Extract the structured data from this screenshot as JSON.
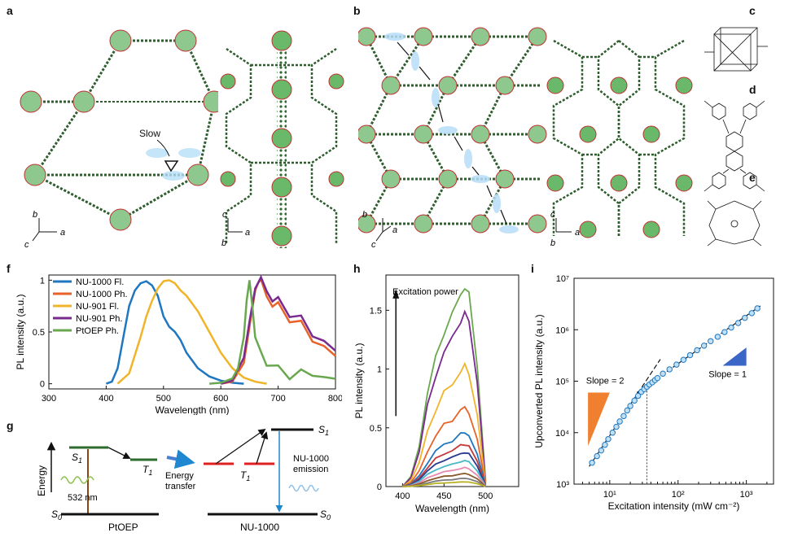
{
  "panels": {
    "a": "a",
    "b": "b",
    "c": "c",
    "d": "d",
    "e": "e",
    "f": "f",
    "g": "g",
    "h": "h",
    "i": "i"
  },
  "panel_a": {
    "slow_label": "Slow",
    "axes_left": {
      "y": "b",
      "z": "c",
      "x": "a"
    },
    "axes_right": {
      "y": "c",
      "z": "b",
      "x": "a"
    }
  },
  "panel_b": {
    "axes_left": {
      "y": "b",
      "z": "c",
      "x": "a"
    },
    "axes_right": {
      "y": "c",
      "z": "b",
      "x": "a"
    }
  },
  "panel_g": {
    "energy_label": "Energy",
    "s1_left": "S",
    "s1_left_sub": "1",
    "t1_left": "T",
    "t1_left_sub": "1",
    "wavelength": "532 nm",
    "s0_left": "S",
    "s0_left_sub": "0",
    "ptoep": "PtOEP",
    "energy_transfer": [
      "Energy",
      "transfer"
    ],
    "t1_right": "T",
    "t1_right_sub": "1",
    "s1_right": "S",
    "s1_right_sub": "1",
    "s0_right": "S",
    "s0_right_sub": "0",
    "emission": [
      "NU-1000",
      "emission"
    ],
    "nu1000": "NU-1000"
  },
  "chart_data": [
    {
      "id": "f",
      "type": "line",
      "xlabel": "Wavelength (nm)",
      "ylabel": "PL intensity (a.u.)",
      "xlim": [
        300,
        800
      ],
      "ylim": [
        -0.05,
        1.05
      ],
      "xticks": [
        300,
        400,
        500,
        600,
        700,
        800
      ],
      "yticks": [
        0,
        0.5,
        1
      ],
      "yticklabels": [
        "0",
        "0.5",
        "1"
      ],
      "legend_position": "top-left",
      "series": [
        {
          "name": "NU-1000 Fl.",
          "color": "#1f77c0",
          "x": [
            400,
            410,
            420,
            430,
            440,
            450,
            460,
            470,
            480,
            490,
            500,
            510,
            520,
            530,
            540,
            560,
            580,
            600,
            620,
            640
          ],
          "y": [
            0,
            0.02,
            0.15,
            0.45,
            0.75,
            0.9,
            0.97,
            0.99,
            0.95,
            0.85,
            0.65,
            0.55,
            0.5,
            0.42,
            0.3,
            0.15,
            0.07,
            0.03,
            0.01,
            0
          ]
        },
        {
          "name": "NU-1000 Ph.",
          "color": "#e8622a",
          "x": [
            600,
            620,
            640,
            650,
            660,
            665,
            670,
            680,
            690,
            700,
            720,
            740,
            760,
            780,
            800
          ],
          "y": [
            0,
            0.02,
            0.2,
            0.55,
            0.9,
            1.0,
            0.95,
            0.85,
            0.8,
            0.75,
            0.65,
            0.55,
            0.45,
            0.35,
            0.25
          ]
        },
        {
          "name": "NU-901 Fl.",
          "color": "#f0b428",
          "x": [
            420,
            440,
            460,
            470,
            480,
            490,
            500,
            510,
            520,
            530,
            540,
            560,
            580,
            600,
            620,
            640,
            660,
            680
          ],
          "y": [
            0,
            0.1,
            0.45,
            0.65,
            0.8,
            0.92,
            0.99,
            1.0,
            0.97,
            0.9,
            0.85,
            0.7,
            0.5,
            0.3,
            0.15,
            0.06,
            0.02,
            0
          ]
        },
        {
          "name": "NU-901 Ph.",
          "color": "#7a2a8e",
          "x": [
            600,
            620,
            640,
            650,
            660,
            665,
            670,
            680,
            690,
            700,
            720,
            740,
            760,
            780,
            800
          ],
          "y": [
            0,
            0.03,
            0.25,
            0.6,
            0.92,
            1.0,
            0.97,
            0.9,
            0.85,
            0.8,
            0.7,
            0.6,
            0.5,
            0.4,
            0.3
          ]
        },
        {
          "name": "PtOEP Ph.",
          "color": "#6aa84f",
          "x": [
            580,
            600,
            620,
            630,
            640,
            645,
            650,
            655,
            660,
            670,
            680,
            700,
            720,
            740,
            760,
            780,
            800
          ],
          "y": [
            0,
            0.01,
            0.05,
            0.15,
            0.45,
            0.8,
            1.0,
            0.75,
            0.45,
            0.25,
            0.18,
            0.14,
            0.1,
            0.08,
            0.12,
            0.05,
            0.03
          ]
        }
      ]
    },
    {
      "id": "h",
      "type": "line",
      "xlabel": "Wavelength (nm)",
      "ylabel": "PL intensity (a.u.)",
      "annotation": "Excitation power",
      "xlim": [
        380,
        540
      ],
      "ylim": [
        0,
        1.8
      ],
      "xticks": [
        400,
        450,
        500
      ],
      "yticks": [
        0,
        0.5,
        1,
        1.5
      ],
      "yticklabels": [
        "0",
        "0.5",
        "1",
        "1.5"
      ],
      "x": [
        400,
        410,
        420,
        430,
        440,
        450,
        460,
        470,
        475,
        480,
        490,
        500
      ],
      "shape": [
        0,
        0.05,
        0.2,
        0.45,
        0.65,
        0.78,
        0.85,
        0.97,
        1.0,
        0.95,
        0.6,
        0.03
      ],
      "series": [
        {
          "peak": 1.7,
          "color": "#6aa84f"
        },
        {
          "peak": 1.47,
          "color": "#7a2a8e"
        },
        {
          "peak": 1.02,
          "color": "#f0b428"
        },
        {
          "peak": 0.67,
          "color": "#e8622a"
        },
        {
          "peak": 0.46,
          "color": "#1f77c0"
        },
        {
          "peak": 0.36,
          "color": "#c23a3a"
        },
        {
          "peak": 0.29,
          "color": "#2a3a8e"
        },
        {
          "peak": 0.22,
          "color": "#4bb8c8"
        },
        {
          "peak": 0.16,
          "color": "#e88ab0"
        },
        {
          "peak": 0.11,
          "color": "#8b5a2b"
        },
        {
          "peak": 0.07,
          "color": "#7a7a7a"
        },
        {
          "peak": 0.04,
          "color": "#b8b020"
        }
      ]
    },
    {
      "id": "i",
      "type": "scatter",
      "xlabel": "Excitation intensity (mW cm⁻²)",
      "ylabel": "Upconverted PL intensity (a.u.)",
      "xscale": "log",
      "yscale": "log",
      "xlim": [
        3,
        2500
      ],
      "ylim": [
        1000,
        10000000
      ],
      "xticks": [
        10,
        100,
        1000
      ],
      "xticklabels": [
        "10¹",
        "10²",
        "10³"
      ],
      "yticks": [
        1000,
        10000,
        100000,
        1000000,
        10000000
      ],
      "yticklabels": [
        "10³",
        "10⁴",
        "10⁵",
        "10⁶",
        "10⁷"
      ],
      "slope2_label": "Slope = 2",
      "slope1_label": "Slope = 1",
      "threshold_x": 35,
      "points_x": [
        5.5,
        6.5,
        7.5,
        8.5,
        9.5,
        11,
        12.5,
        14,
        16,
        18,
        20,
        23,
        26,
        29,
        32,
        35,
        38,
        42,
        46,
        50,
        60,
        75,
        95,
        120,
        150,
        190,
        240,
        300,
        380,
        480,
        600,
        760,
        950,
        1200,
        1450
      ],
      "points_y": [
        2600,
        3500,
        4500,
        5800,
        7500,
        10000,
        13000,
        16500,
        21000,
        27000,
        33000,
        42000,
        52000,
        62000,
        70000,
        78000,
        86000,
        95000,
        105000,
        115000,
        140000,
        170000,
        210000,
        260000,
        320000,
        400000,
        490000,
        600000,
        730000,
        900000,
        1100000,
        1350000,
        1700000,
        2100000,
        2600000
      ],
      "color": "#1f77c0"
    }
  ]
}
